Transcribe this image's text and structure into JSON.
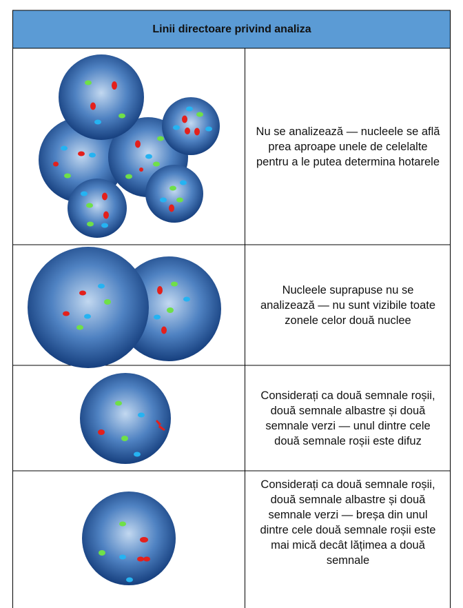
{
  "header": {
    "title": "Linii directoare privind analiza"
  },
  "table": {
    "rows": [
      {
        "text": "Nu se analizează — nucleele se află prea aproape unele de celelalte pentru a le putea determina hotarele"
      },
      {
        "text": "Nucleele suprapuse nu se analizează — nu sunt vizibile toate zonele celor două nuclee"
      },
      {
        "text": "Considerați ca două semnale roșii, două semnale albastre și două semnale verzi — unul dintre cele două semnale roșii este difuz"
      },
      {
        "text": "Considerați ca două semnale roșii, două semnale albastre și două semnale verzi — breșa din unul dintre cele două semnale roșii este mai mică decât lățimea a două semnale"
      }
    ]
  }
}
